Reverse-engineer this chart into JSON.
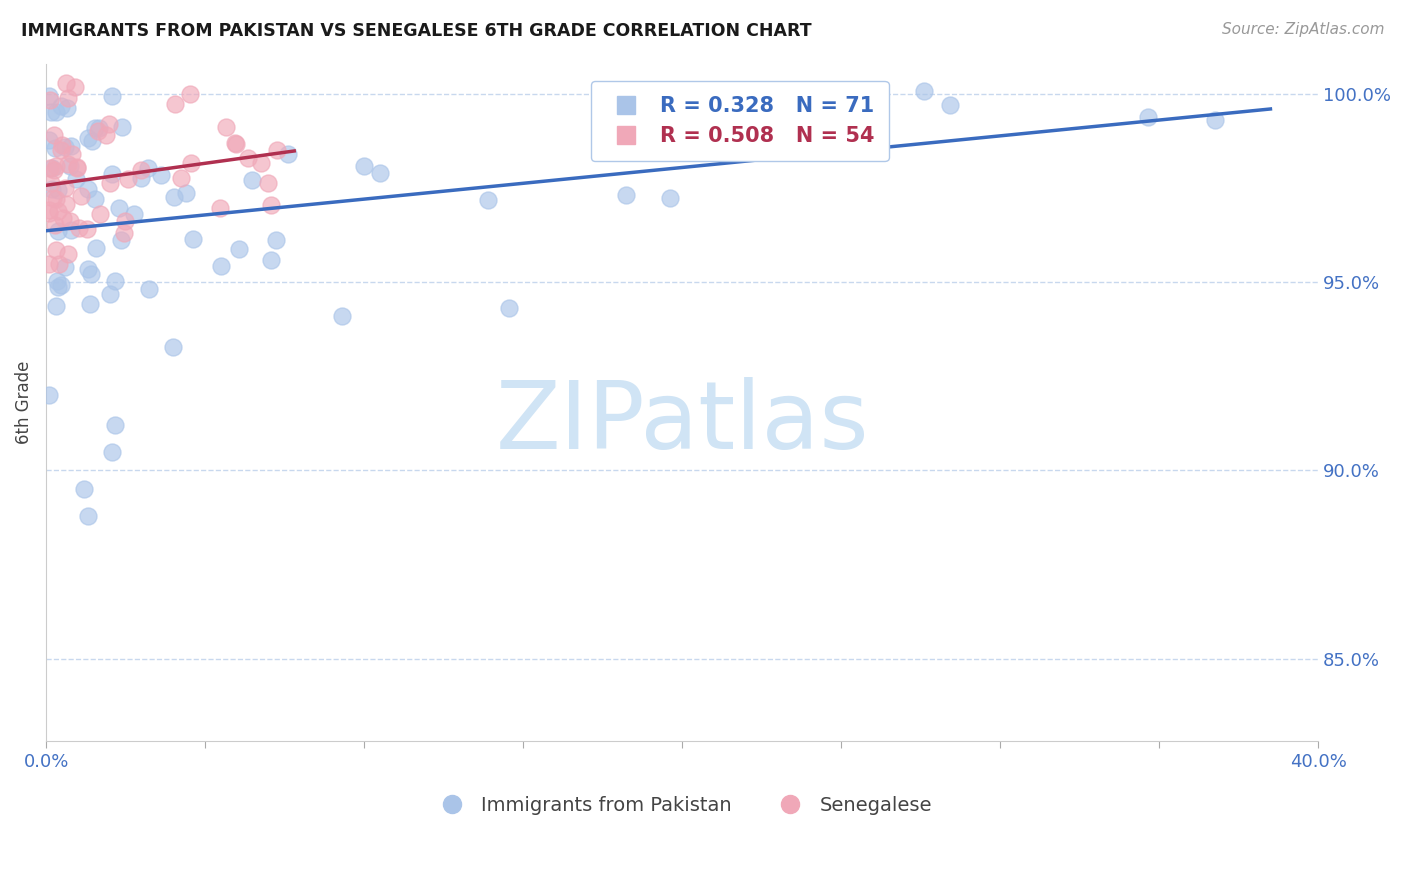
{
  "title": "IMMIGRANTS FROM PAKISTAN VS SENEGALESE 6TH GRADE CORRELATION CHART",
  "source": "Source: ZipAtlas.com",
  "ylabel": "6th Grade",
  "xlim": [
    0.0,
    0.4
  ],
  "ylim": [
    0.828,
    1.008
  ],
  "yticks": [
    0.85,
    0.9,
    0.95,
    1.0
  ],
  "ytick_labels": [
    "85.0%",
    "90.0%",
    "95.0%",
    "100.0%"
  ],
  "xticks": [
    0.0,
    0.05,
    0.1,
    0.15,
    0.2,
    0.25,
    0.3,
    0.35,
    0.4
  ],
  "xtick_labels": [
    "0.0%",
    "",
    "",
    "",
    "",
    "",
    "",
    "",
    "40.0%"
  ],
  "pakistan_color": "#aac4e8",
  "senegal_color": "#f0a8b8",
  "pakistan_line_color": "#3a6bbf",
  "senegal_line_color": "#b03050",
  "legend_pakistan_R": "0.328",
  "legend_pakistan_N": "71",
  "legend_senegal_R": "0.508",
  "legend_senegal_N": "54",
  "axis_color": "#4472c4",
  "grid_color": "#c8d8ee",
  "background_color": "#ffffff",
  "watermark": "ZIPatlas",
  "watermark_color": "#d0e4f5"
}
